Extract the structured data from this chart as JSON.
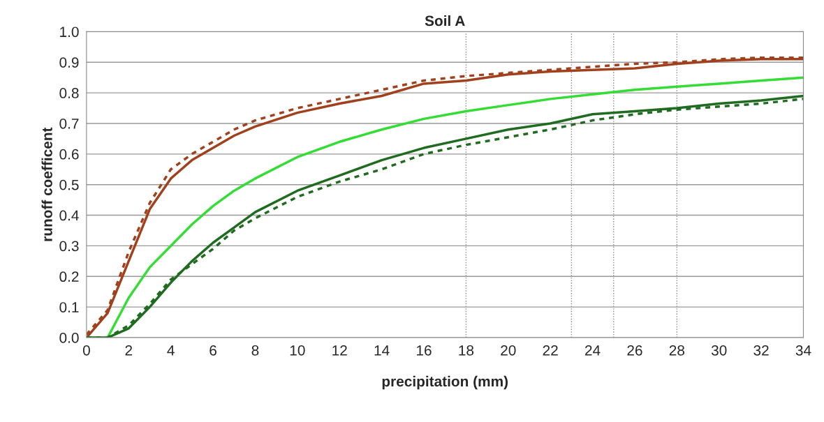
{
  "chart_data": {
    "type": "line",
    "title": "Soil A",
    "xlabel": "precipitation (mm)",
    "ylabel": "runoff coefficent",
    "x": [
      0,
      1,
      2,
      3,
      4,
      5,
      6,
      7,
      8,
      10,
      12,
      14,
      16,
      18,
      20,
      22,
      24,
      26,
      28,
      30,
      32,
      34
    ],
    "series": [
      {
        "color": "#a0401c",
        "line_style": "solid",
        "values": [
          0.0,
          0.08,
          0.25,
          0.42,
          0.52,
          0.58,
          0.62,
          0.66,
          0.69,
          0.735,
          0.765,
          0.79,
          0.83,
          0.84,
          0.86,
          0.87,
          0.875,
          0.88,
          0.895,
          0.905,
          0.91,
          0.91
        ]
      },
      {
        "color": "#a0401c",
        "line_style": "dashed",
        "values": [
          0.01,
          0.09,
          0.28,
          0.44,
          0.55,
          0.6,
          0.64,
          0.68,
          0.71,
          0.75,
          0.78,
          0.81,
          0.84,
          0.855,
          0.865,
          0.875,
          0.885,
          0.895,
          0.9,
          0.91,
          0.915,
          0.915
        ]
      },
      {
        "color": "#33dd33",
        "line_style": "solid",
        "x": [
          1,
          2,
          3,
          4,
          5,
          6,
          7,
          8,
          10,
          12,
          14,
          16,
          18,
          20,
          22,
          24,
          26,
          28,
          30,
          32,
          34
        ],
        "values": [
          0.0,
          0.13,
          0.23,
          0.3,
          0.37,
          0.43,
          0.48,
          0.52,
          0.59,
          0.64,
          0.68,
          0.715,
          0.74,
          0.76,
          0.78,
          0.795,
          0.81,
          0.82,
          0.83,
          0.84,
          0.85
        ]
      },
      {
        "color": "#1f6b1f",
        "line_style": "solid",
        "values": [
          0.0,
          0.0,
          0.03,
          0.1,
          0.18,
          0.25,
          0.31,
          0.36,
          0.41,
          0.48,
          0.53,
          0.58,
          0.62,
          0.65,
          0.68,
          0.7,
          0.73,
          0.74,
          0.75,
          0.765,
          0.775,
          0.79
        ]
      },
      {
        "color": "#1f6b1f",
        "line_style": "dashed",
        "values": [
          0.0,
          0.0,
          0.04,
          0.11,
          0.19,
          0.24,
          0.29,
          0.35,
          0.39,
          0.46,
          0.51,
          0.55,
          0.6,
          0.63,
          0.655,
          0.68,
          0.71,
          0.73,
          0.745,
          0.755,
          0.765,
          0.78
        ]
      }
    ],
    "xlim": [
      0,
      34
    ],
    "xticks": [
      0,
      2,
      4,
      6,
      8,
      10,
      12,
      14,
      16,
      18,
      20,
      22,
      24,
      26,
      28,
      30,
      32,
      34
    ],
    "ylim": [
      0.0,
      1.0
    ],
    "yticks": [
      {
        "value": 0,
        "label": "0.0"
      },
      0.1,
      0.2,
      0.3,
      0.4,
      0.5,
      0.6,
      0.7,
      0.8,
      0.9,
      {
        "value": 1,
        "label": "1.0"
      }
    ],
    "ref_lines": [
      {
        "axis": "x",
        "value": 18,
        "line_style": "dotted"
      },
      {
        "axis": "x",
        "value": 23,
        "line_style": "dotted"
      },
      {
        "axis": "x",
        "value": 25,
        "line_style": "dotted"
      },
      {
        "axis": "x",
        "value": 28,
        "line_style": "dotted"
      }
    ],
    "grid": "y",
    "legend": false,
    "marker": "none"
  }
}
